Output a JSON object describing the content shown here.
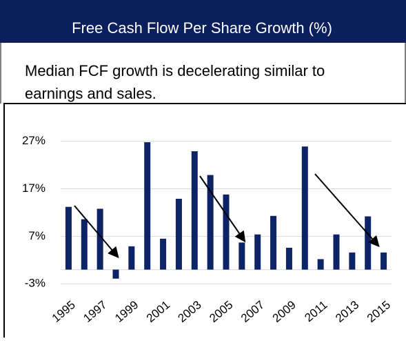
{
  "header": {
    "title": "Free Cash Flow Per Share Growth (%)"
  },
  "subtitle": [
    "Median FCF growth is decelerating similar to",
    "earnings and sales."
  ],
  "chart_data": {
    "type": "bar",
    "categories": [
      "1995",
      null,
      "1997",
      null,
      "1999",
      null,
      "2001",
      null,
      "2003",
      null,
      "2005",
      null,
      "2007",
      null,
      "2009",
      null,
      "2011",
      null,
      "2013",
      null,
      "2015"
    ],
    "values": [
      13.2,
      10.6,
      12.8,
      -1.9,
      4.9,
      26.8,
      6.5,
      14.9,
      24.9,
      19.9,
      15.8,
      5.7,
      7.4,
      11.3,
      4.6,
      25.9,
      2.2,
      7.4,
      3.6,
      11.2,
      3.6
    ],
    "color": "#0c2366",
    "ylim": [
      -5,
      30
    ],
    "yticks": [
      {
        "value": -3,
        "label": "-3%"
      },
      {
        "value": 7,
        "label": "7%"
      },
      {
        "value": 17,
        "label": "17%"
      },
      {
        "value": 27,
        "label": "27%"
      }
    ],
    "grid": true
  }
}
